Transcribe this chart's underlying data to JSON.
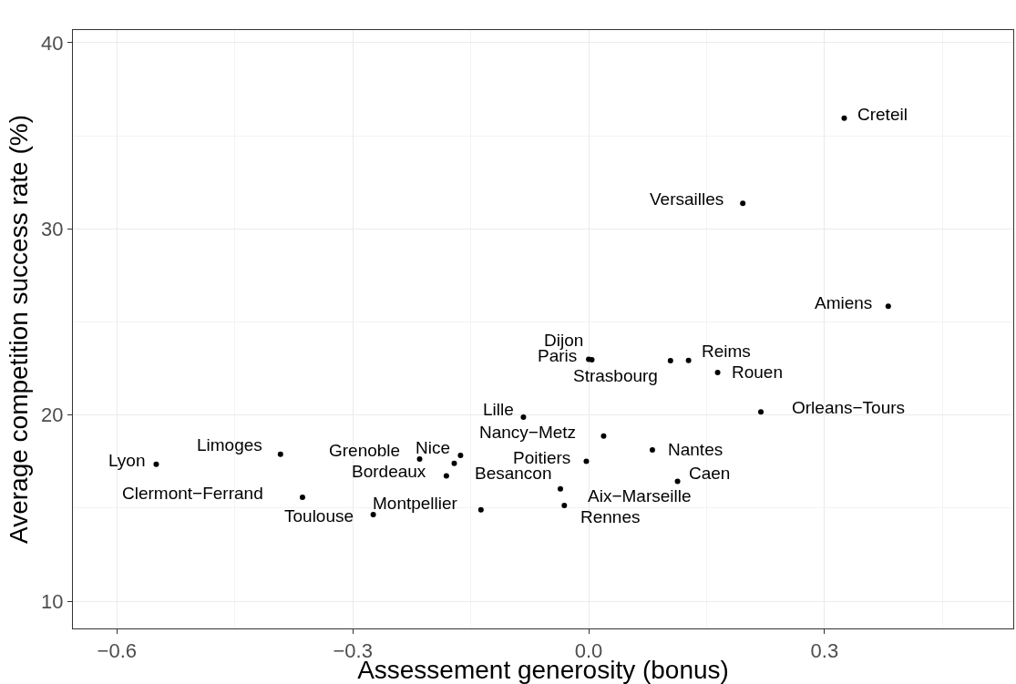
{
  "chart_data": {
    "type": "scatter",
    "xlabel": "Assessement generosity (bonus)",
    "ylabel": "Average competition success rate (%)",
    "xlim": [
      -0.656,
      0.54
    ],
    "ylim": [
      8.54,
      40.68
    ],
    "xticks": [
      {
        "value": -0.6,
        "label": "−0.6"
      },
      {
        "value": -0.45,
        "label": null
      },
      {
        "value": -0.3,
        "label": "−0.3"
      },
      {
        "value": -0.15,
        "label": null
      },
      {
        "value": 0.0,
        "label": "0.0"
      },
      {
        "value": 0.15,
        "label": null
      },
      {
        "value": 0.3,
        "label": "0.3"
      },
      {
        "value": 0.45,
        "label": null
      }
    ],
    "yticks": [
      10,
      {
        "value": 15,
        "label": null
      },
      20,
      {
        "value": 25,
        "label": null
      },
      30,
      {
        "value": 35,
        "label": null
      },
      40
    ],
    "grid": true,
    "marker": "circle",
    "series": [
      {
        "color": "#000000",
        "x": [
          0.325,
          0.196,
          0.381,
          0.004,
          0.0,
          0.104,
          0.127,
          0.164,
          0.219,
          -0.083,
          0.019,
          0.081,
          -0.003,
          0.113,
          -0.036,
          -0.031,
          -0.137,
          -0.55,
          -0.392,
          -0.364,
          -0.274,
          -0.215,
          -0.163,
          -0.171,
          -0.181
        ],
        "values": [
          35.95,
          31.37,
          25.85,
          22.97,
          23.0,
          22.92,
          22.94,
          22.29,
          20.17,
          19.89,
          18.88,
          18.13,
          17.52,
          16.44,
          16.04,
          15.15,
          14.91,
          17.36,
          17.9,
          15.59,
          14.66,
          17.64,
          17.83,
          17.41,
          16.74
        ]
      }
    ],
    "annotations": [
      {
        "text": "Creteil",
        "x": 0.325,
        "y": 35.95
      },
      {
        "text": "Versailles",
        "x": 0.196,
        "y": 31.37
      },
      {
        "text": "Amiens",
        "x": 0.381,
        "y": 25.85
      },
      {
        "text": "Dijon",
        "x": 0.004,
        "y": 22.97
      },
      {
        "text": "Paris",
        "x": 0.0,
        "y": 23.0
      },
      {
        "text": "Strasbourg",
        "x": 0.104,
        "y": 22.92
      },
      {
        "text": "Reims",
        "x": 0.127,
        "y": 22.94
      },
      {
        "text": "Rouen",
        "x": 0.164,
        "y": 22.29
      },
      {
        "text": "Orleans−Tours",
        "x": 0.219,
        "y": 20.17
      },
      {
        "text": "Lille",
        "x": -0.083,
        "y": 19.89
      },
      {
        "text": "Nancy−Metz",
        "x": 0.019,
        "y": 18.88
      },
      {
        "text": "Nantes",
        "x": 0.081,
        "y": 18.13
      },
      {
        "text": "Poitiers",
        "x": -0.003,
        "y": 17.52
      },
      {
        "text": "Caen",
        "x": 0.113,
        "y": 16.44
      },
      {
        "text": "Aix−Marseille",
        "x": -0.036,
        "y": 16.04
      },
      {
        "text": "Rennes",
        "x": -0.031,
        "y": 15.15
      },
      {
        "text": "Montpellier",
        "x": -0.137,
        "y": 14.91
      },
      {
        "text": "Lyon",
        "x": -0.55,
        "y": 17.36
      },
      {
        "text": "Limoges",
        "x": -0.392,
        "y": 17.9
      },
      {
        "text": "Clermont−Ferrand",
        "x": -0.364,
        "y": 15.59
      },
      {
        "text": "Toulouse",
        "x": -0.274,
        "y": 14.66
      },
      {
        "text": "Grenoble",
        "x": -0.215,
        "y": 17.64
      },
      {
        "text": "Nice",
        "x": -0.163,
        "y": 17.83
      },
      {
        "text": "Besancon",
        "x": -0.171,
        "y": 17.41
      },
      {
        "text": "Bordeaux",
        "x": -0.181,
        "y": 16.74
      }
    ]
  }
}
